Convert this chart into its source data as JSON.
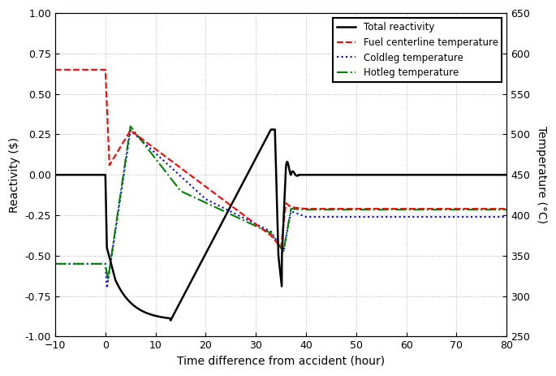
{
  "xlim": [
    -10,
    80
  ],
  "ylim_left": [
    -1.0,
    1.0
  ],
  "ylim_right": [
    250,
    650
  ],
  "xticks": [
    -10,
    0,
    10,
    20,
    30,
    40,
    50,
    60,
    70,
    80
  ],
  "yticks_left": [
    -1.0,
    -0.75,
    -0.5,
    -0.25,
    0.0,
    0.25,
    0.5,
    0.75,
    1.0
  ],
  "yticks_right": [
    250,
    300,
    350,
    400,
    450,
    500,
    550,
    600,
    650
  ],
  "xlabel": "Time difference from accident (hour)",
  "ylabel_left": "Reactivity ($)",
  "ylabel_right": "Temperature (°C)",
  "legend_labels": [
    "Total reactivity",
    "Fuel centerline temperature",
    "Coldleg temperature",
    "Hotleg temperature"
  ],
  "background_color": "#ffffff",
  "grid_color": "#888888",
  "temp_ref": 450.0,
  "temp_scale": 200.0,
  "react_min": -0.9,
  "react_min_t": 13.0,
  "react_peak": 0.28,
  "react_peak_t": 33.0
}
